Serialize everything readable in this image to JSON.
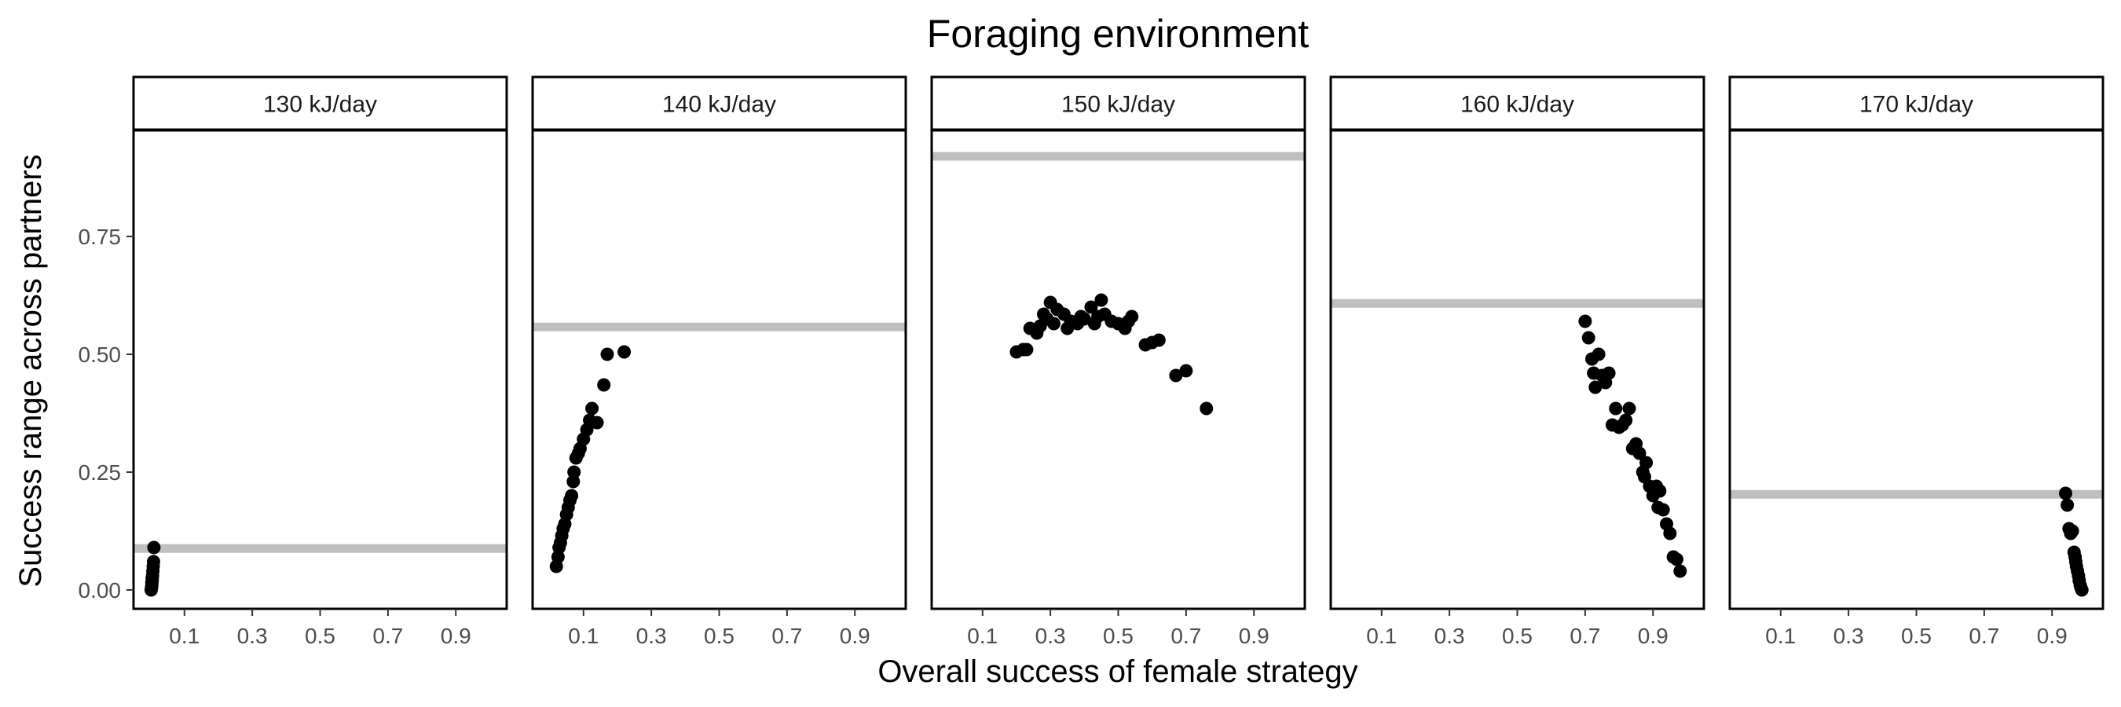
{
  "chart_data": {
    "type": "scatter",
    "title": "Foraging environment",
    "xlabel": "Overall success of female strategy",
    "ylabel": "Success range across partners",
    "xlim": [
      -0.05,
      1.05
    ],
    "ylim": [
      -0.04,
      0.975
    ],
    "x_ticks": [
      0.1,
      0.3,
      0.5,
      0.7,
      0.9
    ],
    "x_tick_labels": [
      "0.1",
      "0.3",
      "0.5",
      "0.7",
      "0.9"
    ],
    "y_ticks": [
      0,
      0.25,
      0.5,
      0.75
    ],
    "y_tick_labels": [
      "0.00",
      "0.25",
      "0.50",
      "0.75"
    ],
    "grid": false,
    "legend": "none",
    "colors": {
      "points": "#000000",
      "reference_line": "#bfbfbf",
      "strip_fill": "#ffffff",
      "panel_border": "#000000"
    },
    "panels": [
      {
        "label": "130 kJ/day",
        "reference_y": 0.088,
        "points": [
          [
            0.002,
            0.0
          ],
          [
            0.003,
            0.005
          ],
          [
            0.004,
            0.01
          ],
          [
            0.004,
            0.015
          ],
          [
            0.005,
            0.02
          ],
          [
            0.005,
            0.025
          ],
          [
            0.006,
            0.03
          ],
          [
            0.007,
            0.04
          ],
          [
            0.008,
            0.05
          ],
          [
            0.009,
            0.06
          ],
          [
            0.01,
            0.09
          ]
        ]
      },
      {
        "label": "140 kJ/day",
        "reference_y": 0.558,
        "points": [
          [
            0.02,
            0.05
          ],
          [
            0.025,
            0.07
          ],
          [
            0.028,
            0.09
          ],
          [
            0.032,
            0.1
          ],
          [
            0.036,
            0.115
          ],
          [
            0.04,
            0.13
          ],
          [
            0.045,
            0.14
          ],
          [
            0.05,
            0.16
          ],
          [
            0.055,
            0.175
          ],
          [
            0.06,
            0.19
          ],
          [
            0.065,
            0.2
          ],
          [
            0.07,
            0.23
          ],
          [
            0.072,
            0.25
          ],
          [
            0.078,
            0.28
          ],
          [
            0.085,
            0.29
          ],
          [
            0.09,
            0.3
          ],
          [
            0.1,
            0.32
          ],
          [
            0.11,
            0.34
          ],
          [
            0.118,
            0.36
          ],
          [
            0.125,
            0.385
          ],
          [
            0.14,
            0.355
          ],
          [
            0.16,
            0.435
          ],
          [
            0.17,
            0.5
          ],
          [
            0.22,
            0.505
          ]
        ]
      },
      {
        "label": "150 kJ/day",
        "reference_y": 0.92,
        "points": [
          [
            0.2,
            0.505
          ],
          [
            0.22,
            0.51
          ],
          [
            0.23,
            0.51
          ],
          [
            0.24,
            0.555
          ],
          [
            0.26,
            0.545
          ],
          [
            0.27,
            0.56
          ],
          [
            0.28,
            0.585
          ],
          [
            0.29,
            0.575
          ],
          [
            0.3,
            0.61
          ],
          [
            0.31,
            0.565
          ],
          [
            0.32,
            0.595
          ],
          [
            0.34,
            0.585
          ],
          [
            0.35,
            0.555
          ],
          [
            0.36,
            0.57
          ],
          [
            0.38,
            0.565
          ],
          [
            0.39,
            0.58
          ],
          [
            0.4,
            0.575
          ],
          [
            0.42,
            0.6
          ],
          [
            0.43,
            0.565
          ],
          [
            0.44,
            0.58
          ],
          [
            0.45,
            0.615
          ],
          [
            0.46,
            0.585
          ],
          [
            0.48,
            0.57
          ],
          [
            0.5,
            0.565
          ],
          [
            0.52,
            0.555
          ],
          [
            0.53,
            0.57
          ],
          [
            0.54,
            0.58
          ],
          [
            0.58,
            0.52
          ],
          [
            0.6,
            0.525
          ],
          [
            0.62,
            0.53
          ],
          [
            0.67,
            0.455
          ],
          [
            0.7,
            0.465
          ],
          [
            0.76,
            0.385
          ]
        ]
      },
      {
        "label": "160 kJ/day",
        "reference_y": 0.608,
        "points": [
          [
            0.7,
            0.57
          ],
          [
            0.71,
            0.535
          ],
          [
            0.72,
            0.49
          ],
          [
            0.725,
            0.46
          ],
          [
            0.73,
            0.43
          ],
          [
            0.74,
            0.5
          ],
          [
            0.75,
            0.455
          ],
          [
            0.76,
            0.44
          ],
          [
            0.77,
            0.46
          ],
          [
            0.78,
            0.35
          ],
          [
            0.79,
            0.385
          ],
          [
            0.8,
            0.345
          ],
          [
            0.81,
            0.35
          ],
          [
            0.82,
            0.36
          ],
          [
            0.83,
            0.385
          ],
          [
            0.84,
            0.3
          ],
          [
            0.85,
            0.31
          ],
          [
            0.86,
            0.29
          ],
          [
            0.87,
            0.25
          ],
          [
            0.875,
            0.24
          ],
          [
            0.88,
            0.27
          ],
          [
            0.89,
            0.22
          ],
          [
            0.9,
            0.2
          ],
          [
            0.91,
            0.22
          ],
          [
            0.915,
            0.175
          ],
          [
            0.92,
            0.21
          ],
          [
            0.93,
            0.17
          ],
          [
            0.94,
            0.14
          ],
          [
            0.95,
            0.12
          ],
          [
            0.96,
            0.07
          ],
          [
            0.97,
            0.065
          ],
          [
            0.98,
            0.04
          ]
        ]
      },
      {
        "label": "170 kJ/day",
        "reference_y": 0.203,
        "points": [
          [
            0.94,
            0.205
          ],
          [
            0.945,
            0.18
          ],
          [
            0.95,
            0.13
          ],
          [
            0.955,
            0.12
          ],
          [
            0.96,
            0.125
          ],
          [
            0.965,
            0.08
          ],
          [
            0.968,
            0.07
          ],
          [
            0.97,
            0.06
          ],
          [
            0.972,
            0.05
          ],
          [
            0.975,
            0.04
          ],
          [
            0.978,
            0.03
          ],
          [
            0.98,
            0.02
          ],
          [
            0.983,
            0.01
          ],
          [
            0.985,
            0.005
          ],
          [
            0.988,
            0.0
          ]
        ]
      }
    ]
  }
}
